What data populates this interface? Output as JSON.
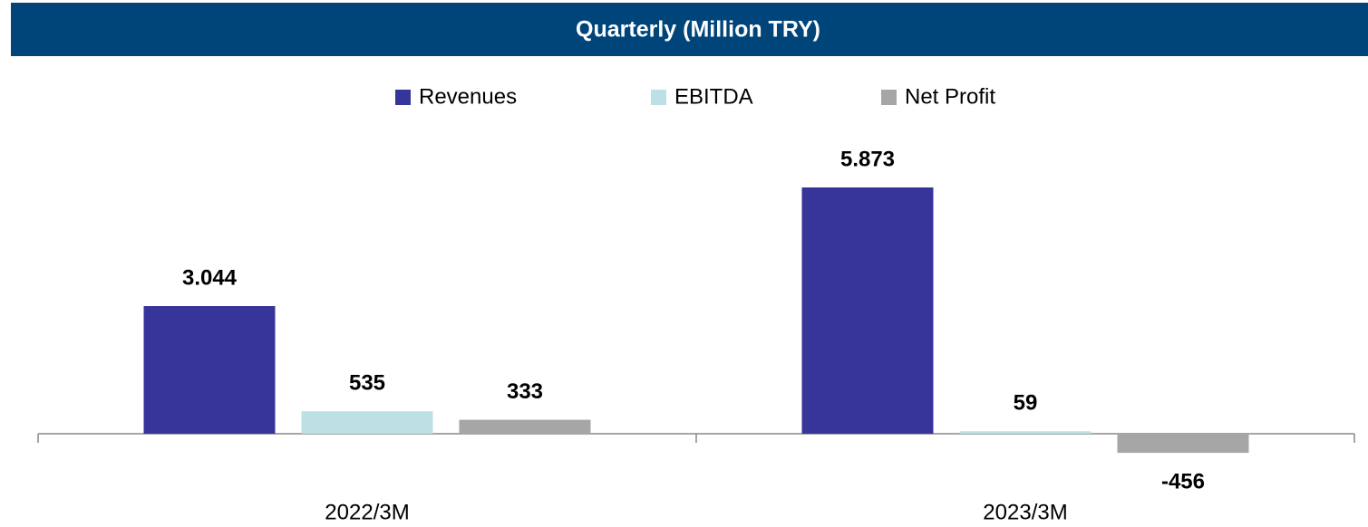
{
  "chart_data": {
    "type": "bar",
    "title": "Quarterly (Million TRY)",
    "categories": [
      "2022/3M",
      "2023/3M"
    ],
    "series": [
      {
        "name": "Revenues",
        "color": "#37359a",
        "values": [
          3044,
          5873
        ],
        "value_labels": [
          "3.044",
          "5.873"
        ]
      },
      {
        "name": "EBITDA",
        "color": "#bde0e4",
        "values": [
          535,
          59
        ]
      },
      {
        "name": "Net Profit",
        "color": "#a6a6a6",
        "values": [
          333,
          -456
        ]
      }
    ],
    "legend": "top"
  }
}
